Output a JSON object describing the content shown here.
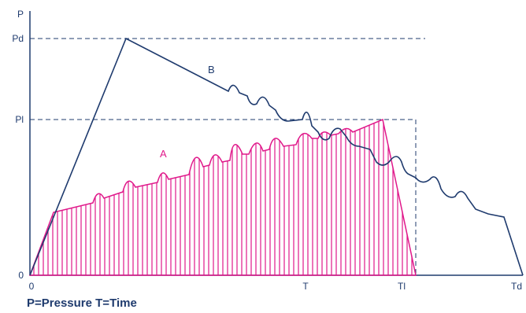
{
  "axes": {
    "y_axis_label": "P",
    "origin_label": "0",
    "x_origin_label": "0",
    "y_tick_pd": "Pd",
    "y_tick_pl": "Pl",
    "x_tick_t": "T",
    "x_tick_tl": "Tl",
    "x_tick_td": "Td"
  },
  "curves": {
    "curve_a_label": "A",
    "curve_b_label": "B"
  },
  "caption": "P=Pressure T=Time",
  "colors": {
    "axis_blue": "#1f3b6e",
    "curve_blue": "#1f3b6e",
    "curve_pink": "#e0188a",
    "hatch_pink": "#e0188a"
  }
}
